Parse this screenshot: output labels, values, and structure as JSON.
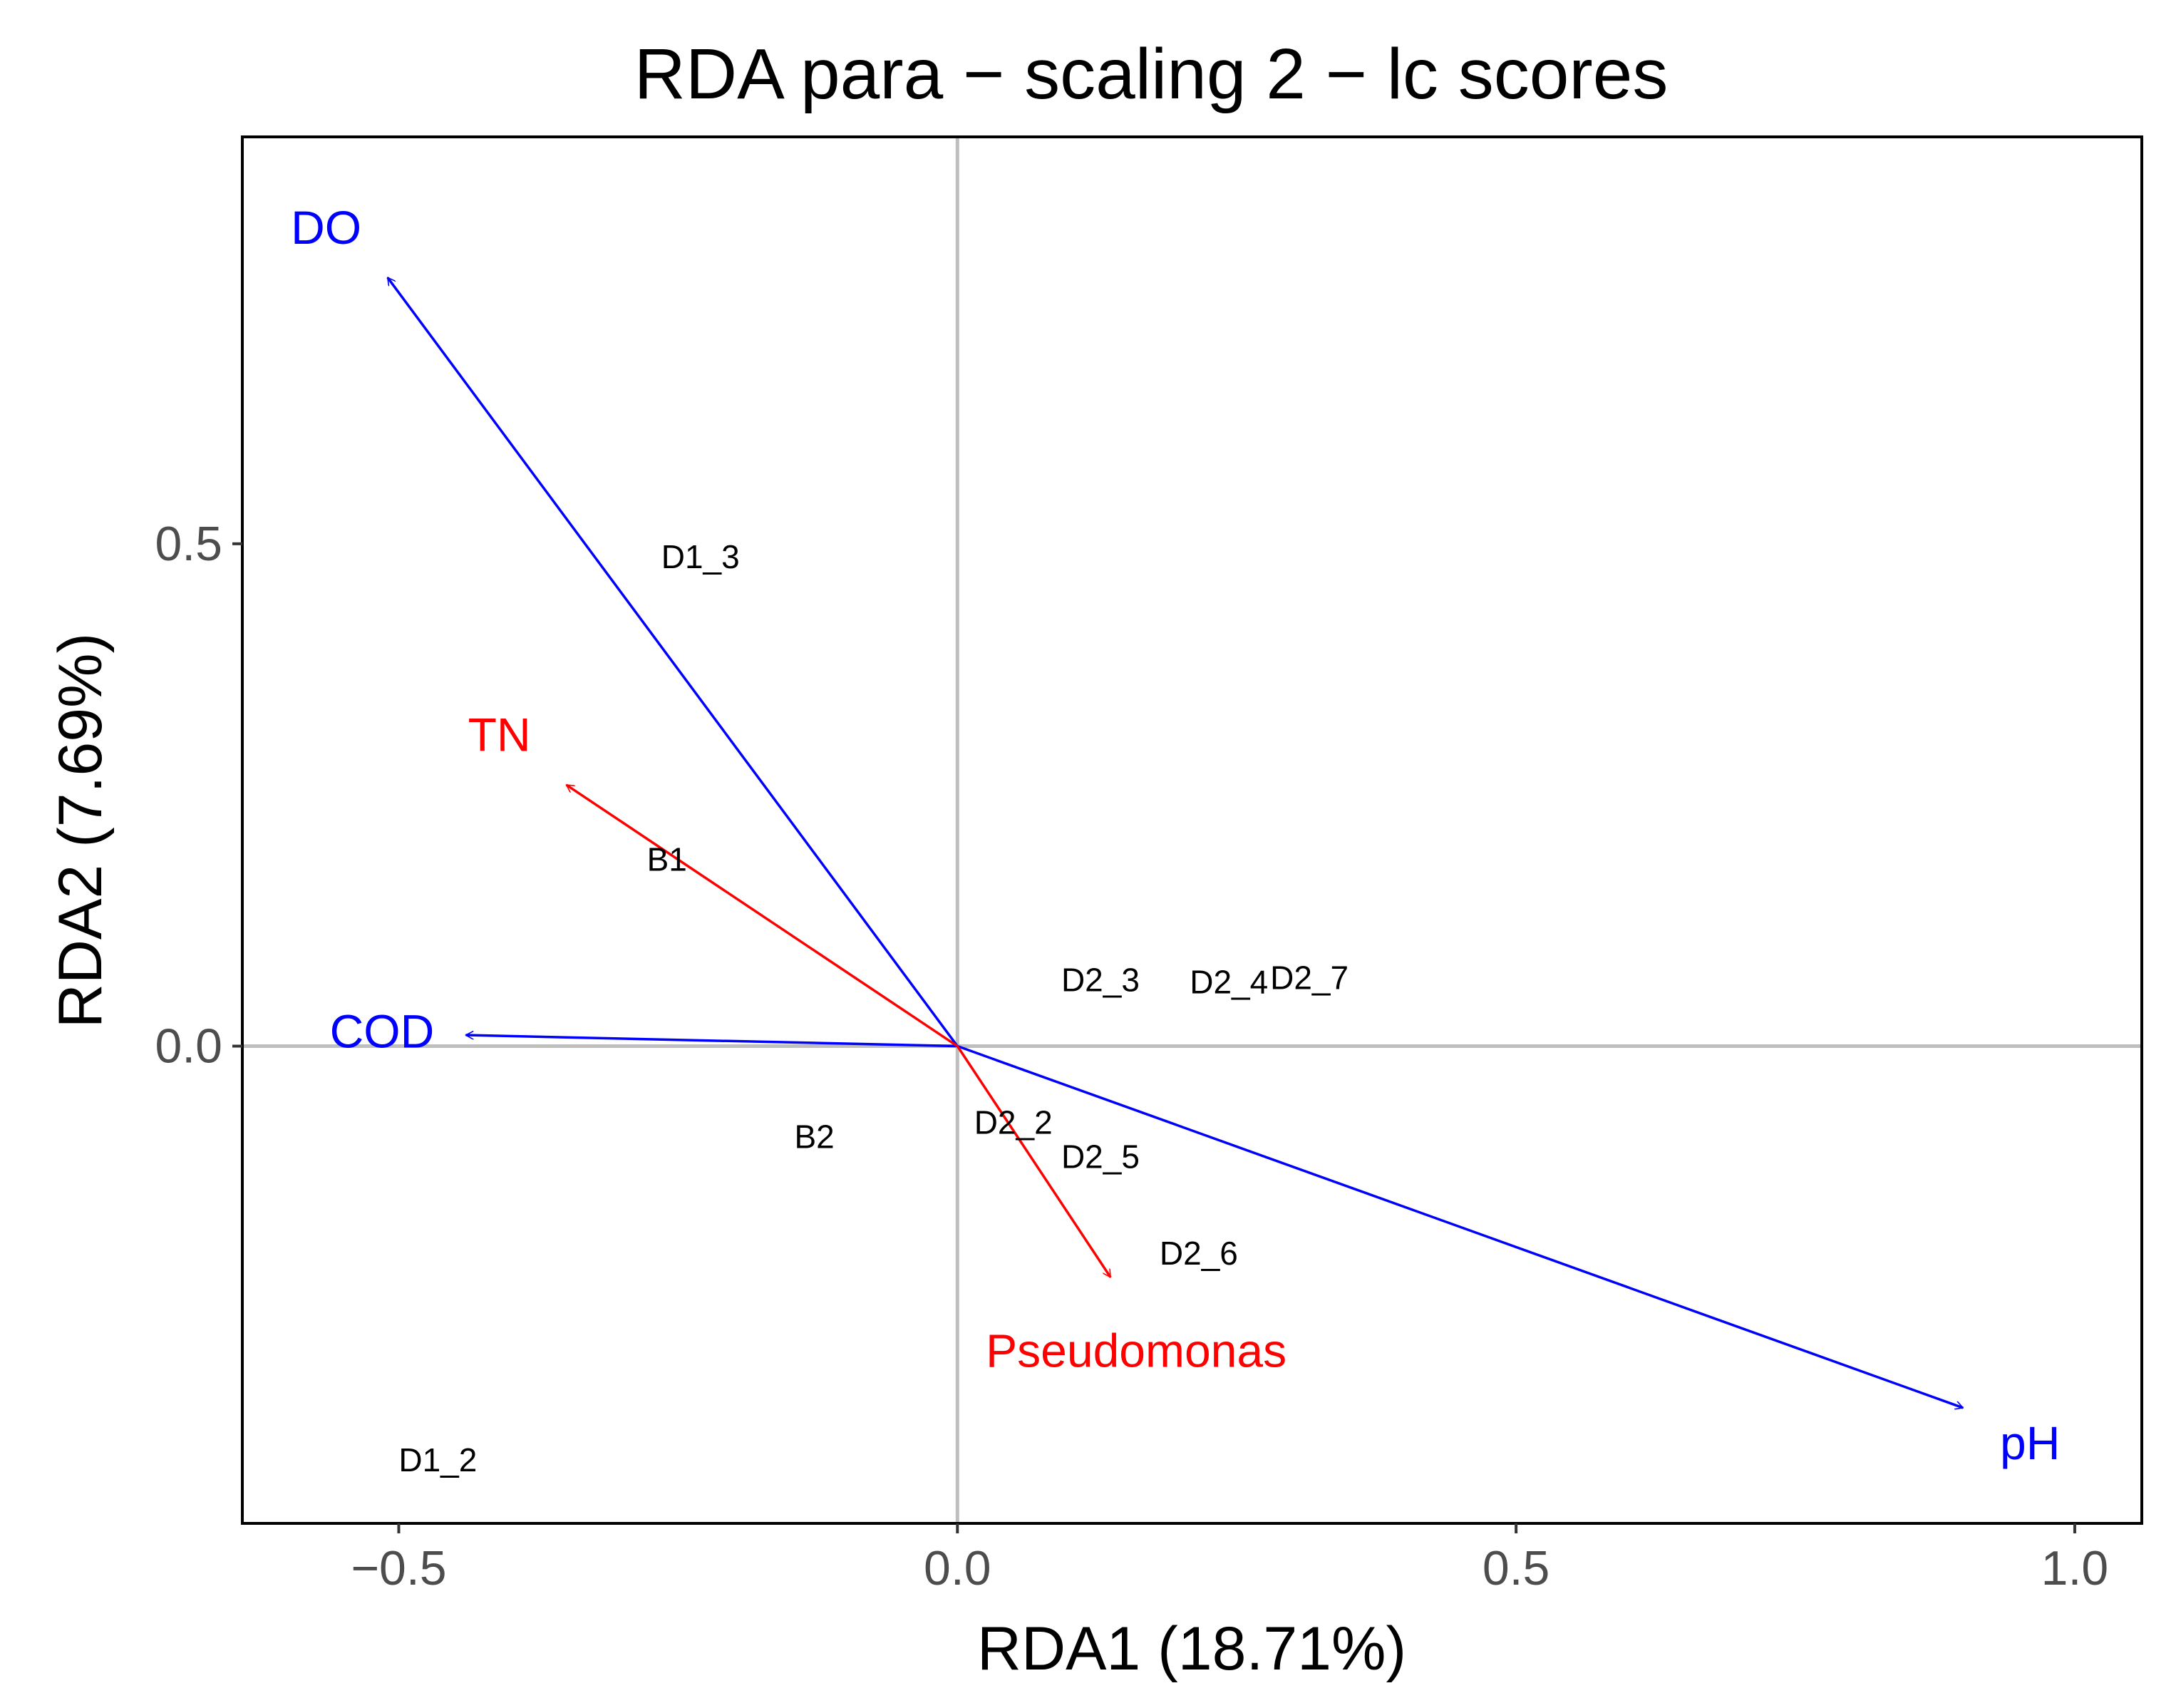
{
  "chart_data": {
    "type": "scatter",
    "title": "RDA para − scaling 2 − lc scores",
    "xlabel": "RDA1 (18.71%)",
    "ylabel": "RDA2 (7.69%)",
    "xlim": [
      -0.64,
      1.06
    ],
    "ylim": [
      -0.475,
      0.905
    ],
    "x_ticks": [
      {
        "value": -0.5,
        "label": "−0.5"
      },
      {
        "value": 0.0,
        "label": "0.0"
      },
      {
        "value": 0.5,
        "label": "0.5"
      },
      {
        "value": 1.0,
        "label": "1.0"
      }
    ],
    "y_ticks": [
      {
        "value": 0.0,
        "label": "0.0"
      },
      {
        "value": 0.5,
        "label": "0.5"
      }
    ],
    "reference_lines": {
      "x": 0,
      "y": 0,
      "color": "#bebebe"
    },
    "grid": false,
    "sites": [
      {
        "label": "D1_3",
        "x": -0.23,
        "y": 0.487
      },
      {
        "label": "B1",
        "x": -0.26,
        "y": 0.186
      },
      {
        "label": "D2_3",
        "x": 0.128,
        "y": 0.066
      },
      {
        "label": "D2_4",
        "x": 0.243,
        "y": 0.064
      },
      {
        "label": "D2_7",
        "x": 0.315,
        "y": 0.068
      },
      {
        "label": "B2",
        "x": -0.128,
        "y": -0.09
      },
      {
        "label": "D2_2",
        "x": 0.05,
        "y": -0.076
      },
      {
        "label": "D2_5",
        "x": 0.128,
        "y": -0.11
      },
      {
        "label": "D2_6",
        "x": 0.216,
        "y": -0.206
      },
      {
        "label": "D1_2",
        "x": -0.465,
        "y": -0.412
      }
    ],
    "env_vectors": [
      {
        "label": "DO",
        "x": -0.51,
        "y": 0.765,
        "color": "#0000ff",
        "label_x": -0.565,
        "label_y": 0.815
      },
      {
        "label": "COD",
        "x": -0.44,
        "y": 0.011,
        "color": "#0000ff",
        "label_x": -0.515,
        "label_y": 0.015
      },
      {
        "label": "pH",
        "x": 0.9,
        "y": -0.36,
        "color": "#0000ff",
        "label_x": 0.96,
        "label_y": -0.395
      }
    ],
    "species_vectors": [
      {
        "label": "TN",
        "x": -0.35,
        "y": 0.26,
        "color": "#ff0000",
        "label_x": -0.41,
        "label_y": 0.31
      },
      {
        "label": "Pseudomonas",
        "x": 0.137,
        "y": -0.23,
        "color": "#ff0000",
        "label_x": 0.16,
        "label_y": -0.303
      }
    ]
  }
}
